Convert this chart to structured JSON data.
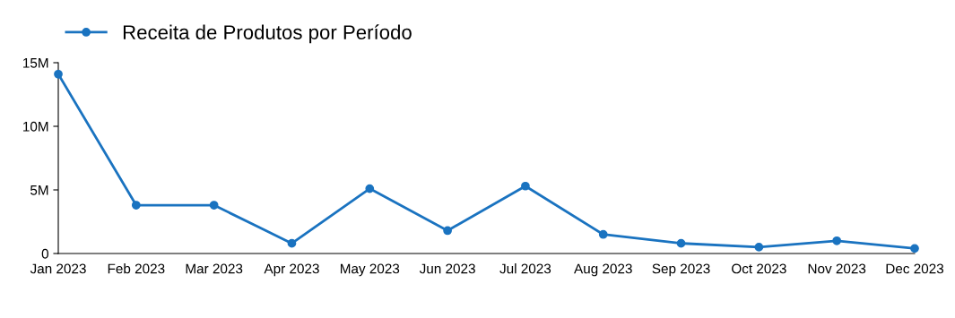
{
  "chart_data": {
    "type": "line",
    "categories": [
      "Jan 2023",
      "Feb 2023",
      "Mar 2023",
      "Apr 2023",
      "May 2023",
      "Jun 2023",
      "Jul 2023",
      "Aug 2023",
      "Sep 2023",
      "Oct 2023",
      "Nov 2023",
      "Dec 2023"
    ],
    "series": [
      {
        "name": "Receita de Produtos por Período",
        "color": "#1a73c0",
        "values": [
          14.1,
          3.8,
          3.8,
          0.8,
          5.1,
          1.8,
          5.3,
          1.5,
          0.8,
          0.5,
          1.0,
          0.4
        ]
      }
    ],
    "ylim": [
      0,
      15
    ],
    "yticks": [
      {
        "value": 0,
        "label": "0"
      },
      {
        "value": 5,
        "label": "5M"
      },
      {
        "value": 10,
        "label": "10M"
      },
      {
        "value": 15,
        "label": "15M"
      }
    ],
    "marker": "circle",
    "line_style": "solid",
    "legend": "top left",
    "grid": false
  }
}
